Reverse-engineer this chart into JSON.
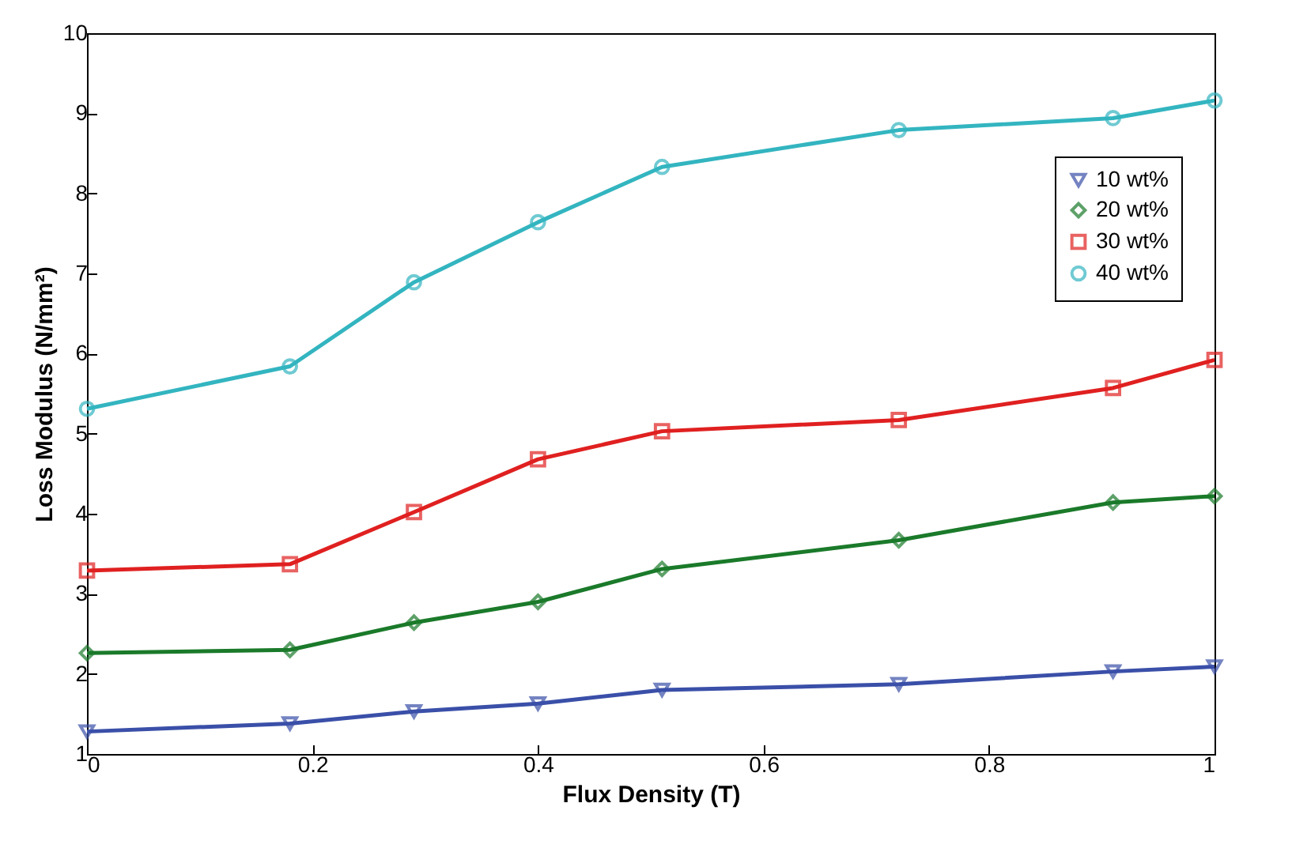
{
  "chart_data": {
    "type": "line",
    "xlabel": "Flux Density (T)",
    "ylabel": "Loss Modulus (N/mm²)",
    "x": [
      0,
      0.18,
      0.29,
      0.4,
      0.51,
      0.72,
      0.91,
      1
    ],
    "series": [
      {
        "name": "10 wt%",
        "color": "#3a4fa8",
        "marker": "triangle",
        "values": [
          1.28,
          1.38,
          1.53,
          1.63,
          1.8,
          1.87,
          2.03,
          2.09
        ]
      },
      {
        "name": "20 wt%",
        "color": "#1a7a2a",
        "marker": "diamond",
        "values": [
          2.26,
          2.3,
          2.64,
          2.9,
          3.31,
          3.67,
          4.14,
          4.22
        ]
      },
      {
        "name": "30 wt%",
        "color": "#e02020",
        "marker": "square",
        "values": [
          3.29,
          3.37,
          4.02,
          4.68,
          5.03,
          5.17,
          5.57,
          5.92
        ]
      },
      {
        "name": "40 wt%",
        "color": "#33b5c0",
        "marker": "circle",
        "values": [
          5.31,
          5.84,
          6.89,
          7.64,
          8.33,
          8.79,
          8.94,
          9.16
        ]
      }
    ],
    "xlim": [
      0,
      1
    ],
    "xticks": [
      0,
      0.2,
      0.4,
      0.6,
      0.8,
      1
    ],
    "ylim": [
      1,
      10
    ],
    "yticks": [
      1,
      2,
      3,
      4,
      5,
      6,
      7,
      8,
      9,
      10
    ],
    "grid": false,
    "legend": "top right",
    "line_style": "solid"
  }
}
